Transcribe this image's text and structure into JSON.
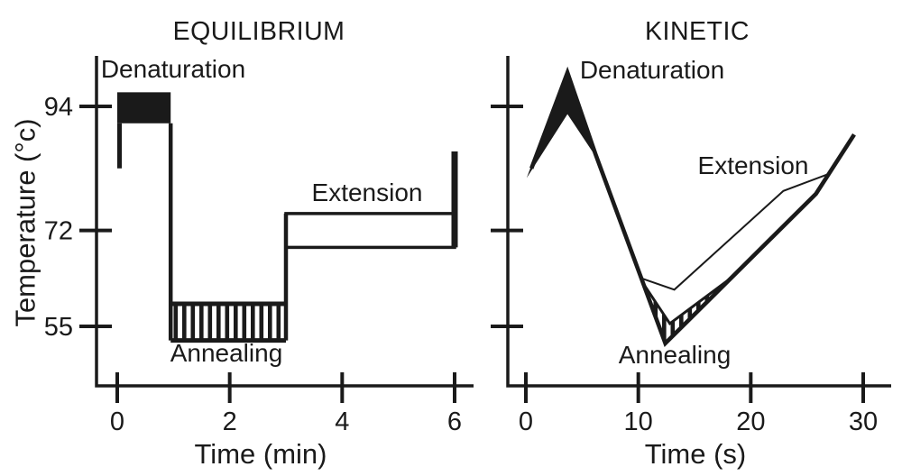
{
  "figure": {
    "background": "#ffffff",
    "ink": "#1a1a1a",
    "description": "Comparison of PCR thermal cycling profiles: equilibrium paradigm (step holds) vs kinetic paradigm (continuous ramps)"
  },
  "chart_data": [
    {
      "type": "line",
      "variant": "step-profile",
      "title": "EQUILIBRIUM",
      "xlabel": "Time (min)",
      "ylabel": "Temperature (°c)",
      "xlim": [
        0,
        6
      ],
      "ylim": [
        49,
        103
      ],
      "grid": false,
      "x_ticks": [
        0,
        2,
        4,
        6
      ],
      "y_ticks": [
        94,
        72,
        55
      ],
      "y_tick_labels": [
        "94",
        "72",
        "55"
      ],
      "step_series": [
        [
          0,
          83
        ],
        [
          0,
          94
        ],
        [
          1,
          94
        ],
        [
          1,
          55
        ],
        [
          3,
          55
        ],
        [
          3,
          72
        ],
        [
          6,
          72
        ],
        [
          6,
          86
        ]
      ],
      "phases": [
        {
          "name": "Denaturation",
          "temp_c": 94,
          "time": [
            0,
            0.95
          ],
          "band_temp": [
            91,
            96.5
          ],
          "band_style": "solid"
        },
        {
          "name": "Annealing",
          "temp_c": 55,
          "time": [
            0.95,
            3
          ],
          "band_temp": [
            52.5,
            59
          ],
          "band_style": "hatch"
        },
        {
          "name": "Extension",
          "temp_c": 72,
          "time": [
            3,
            6
          ],
          "band_temp": [
            69,
            75
          ],
          "band_style": "outline"
        }
      ],
      "segments": [
        {
          "name": "cycle-start-ramp",
          "points": [
            [
              0.04,
              83
            ],
            [
              0.04,
              91
            ]
          ],
          "width": 5
        },
        {
          "name": "denature-to-anneal-drop",
          "points": [
            [
              0.95,
              91
            ],
            [
              0.95,
              52.5
            ]
          ],
          "width": 4.5
        },
        {
          "name": "anneal-to-extend-rise",
          "points": [
            [
              3,
              52.5
            ],
            [
              3,
              75
            ]
          ],
          "width": 4.5
        },
        {
          "name": "end-of-cycle-rise",
          "points": [
            [
              6,
              69
            ],
            [
              6,
              86
            ]
          ],
          "width": 7
        }
      ]
    },
    {
      "type": "line",
      "variant": "kinetic-profile",
      "title": "KINETIC",
      "xlabel": "Time (s)",
      "xlim": [
        0,
        30
      ],
      "ylim": [
        49,
        103
      ],
      "grid": false,
      "x_ticks": [
        0,
        10,
        20,
        30
      ],
      "y_ticks": [
        94,
        72,
        55
      ],
      "y_tick_labels": [],
      "main_line": [
        [
          0.5,
          83
        ],
        [
          3.7,
          100
        ],
        [
          6.2,
          85.5
        ],
        [
          12.4,
          52
        ],
        [
          25.8,
          78.5
        ],
        [
          29.2,
          89
        ]
      ],
      "main_width": 4.6,
      "denaturation_dart": {
        "outer": [
          [
            0.5,
            83
          ],
          [
            3.7,
            100
          ],
          [
            6.2,
            85.5
          ]
        ],
        "notch": [
          3.7,
          93
        ],
        "fill": "solid"
      },
      "annealing_wedge": {
        "upper": [
          [
            10.3,
            63
          ],
          [
            12.8,
            55.5
          ],
          [
            18.2,
            63.5
          ]
        ],
        "lower_vertex": [
          12.4,
          52
        ],
        "fill": "hatch"
      },
      "secondary_line": {
        "points": [
          [
            10.3,
            63.5
          ],
          [
            13.2,
            61.5
          ],
          [
            22.9,
            79
          ],
          [
            26.9,
            82
          ]
        ],
        "width": 2
      },
      "annotations": [
        {
          "text": "Denaturation"
        },
        {
          "text": "Extension"
        },
        {
          "text": "Annealing"
        }
      ]
    }
  ]
}
